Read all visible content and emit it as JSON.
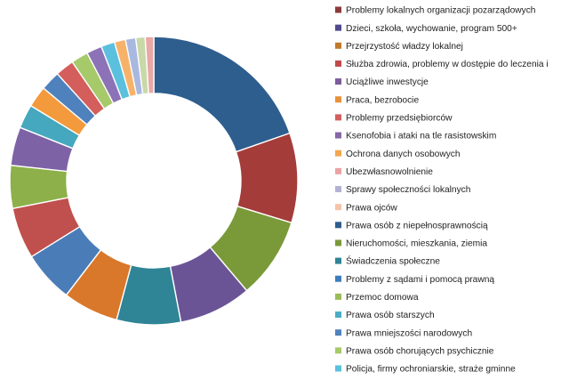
{
  "chart_data": {
    "type": "pie",
    "title": "",
    "donut": true,
    "legend_placement": "right",
    "categories": [
      "Problemy lokalnych organizacji pozarządowych",
      "Dzieci, szkoła, wychowanie, program 500+",
      "Przejrzystość władzy lokalnej",
      "Służba zdrowia, problemy w dostępie do leczenia i",
      "Uciążliwe inwestycje",
      "Praca, bezrobocie",
      "Problemy przedsiębiorców",
      "Ksenofobia i ataki na tle rasistowskim",
      "Ochrona danych osobowych",
      "Ubezwłasnowolnienie",
      "Sprawy społeczności lokalnych",
      "Prawa ojców",
      "Prawa osób z niepełnosprawnością",
      "Nieruchomości, mieszkania, ziemia",
      "Świadczenia społeczne",
      "Problemy z sądami i pomocą prawną",
      "Przemoc domowa",
      "Prawa osób starszych",
      "Prawa mniejszości narodowych",
      "Prawa osób chorujących psychicznie",
      "Policja, firmy ochroniarskie, straże gminne"
    ],
    "legend_colors": [
      "#8B3A3A",
      "#4F4A8C",
      "#C07A2C",
      "#BF4B4B",
      "#7C5C9A",
      "#E8913A",
      "#D35F5F",
      "#8468A8",
      "#F0A850",
      "#E9A3A3",
      "#B3B2D4",
      "#F6C2A8",
      "#2E5E8E",
      "#7A9A3A",
      "#2F8496",
      "#3F7DBA",
      "#9BBB59",
      "#4BACC6",
      "#4F81BD",
      "#A6C96A",
      "#5BC0DE"
    ],
    "slices": [
      {
        "value": 20.5,
        "color": "#2E5E8E"
      },
      {
        "value": 10.5,
        "color": "#A43C3A"
      },
      {
        "value": 9.5,
        "color": "#7A9A3A"
      },
      {
        "value": 8.5,
        "color": "#6B5495"
      },
      {
        "value": 7.5,
        "color": "#2F8496"
      },
      {
        "value": 6.5,
        "color": "#D9782A"
      },
      {
        "value": 6.0,
        "color": "#4A7CB8"
      },
      {
        "value": 6.0,
        "color": "#C0504D"
      },
      {
        "value": 5.0,
        "color": "#8DB04A"
      },
      {
        "value": 4.5,
        "color": "#7E62A6"
      },
      {
        "value": 2.8,
        "color": "#45A8BE"
      },
      {
        "value": 2.5,
        "color": "#F39A3C"
      },
      {
        "value": 2.3,
        "color": "#4F81BD"
      },
      {
        "value": 2.2,
        "color": "#D35E5B"
      },
      {
        "value": 2.0,
        "color": "#A6C96A"
      },
      {
        "value": 1.8,
        "color": "#8C72B6"
      },
      {
        "value": 1.6,
        "color": "#5BC0DE"
      },
      {
        "value": 1.3,
        "color": "#F7B26A"
      },
      {
        "value": 1.2,
        "color": "#A9B8E0"
      },
      {
        "value": 1.1,
        "color": "#C9D8A8"
      },
      {
        "value": 1.0,
        "color": "#E8A8A6"
      }
    ]
  }
}
